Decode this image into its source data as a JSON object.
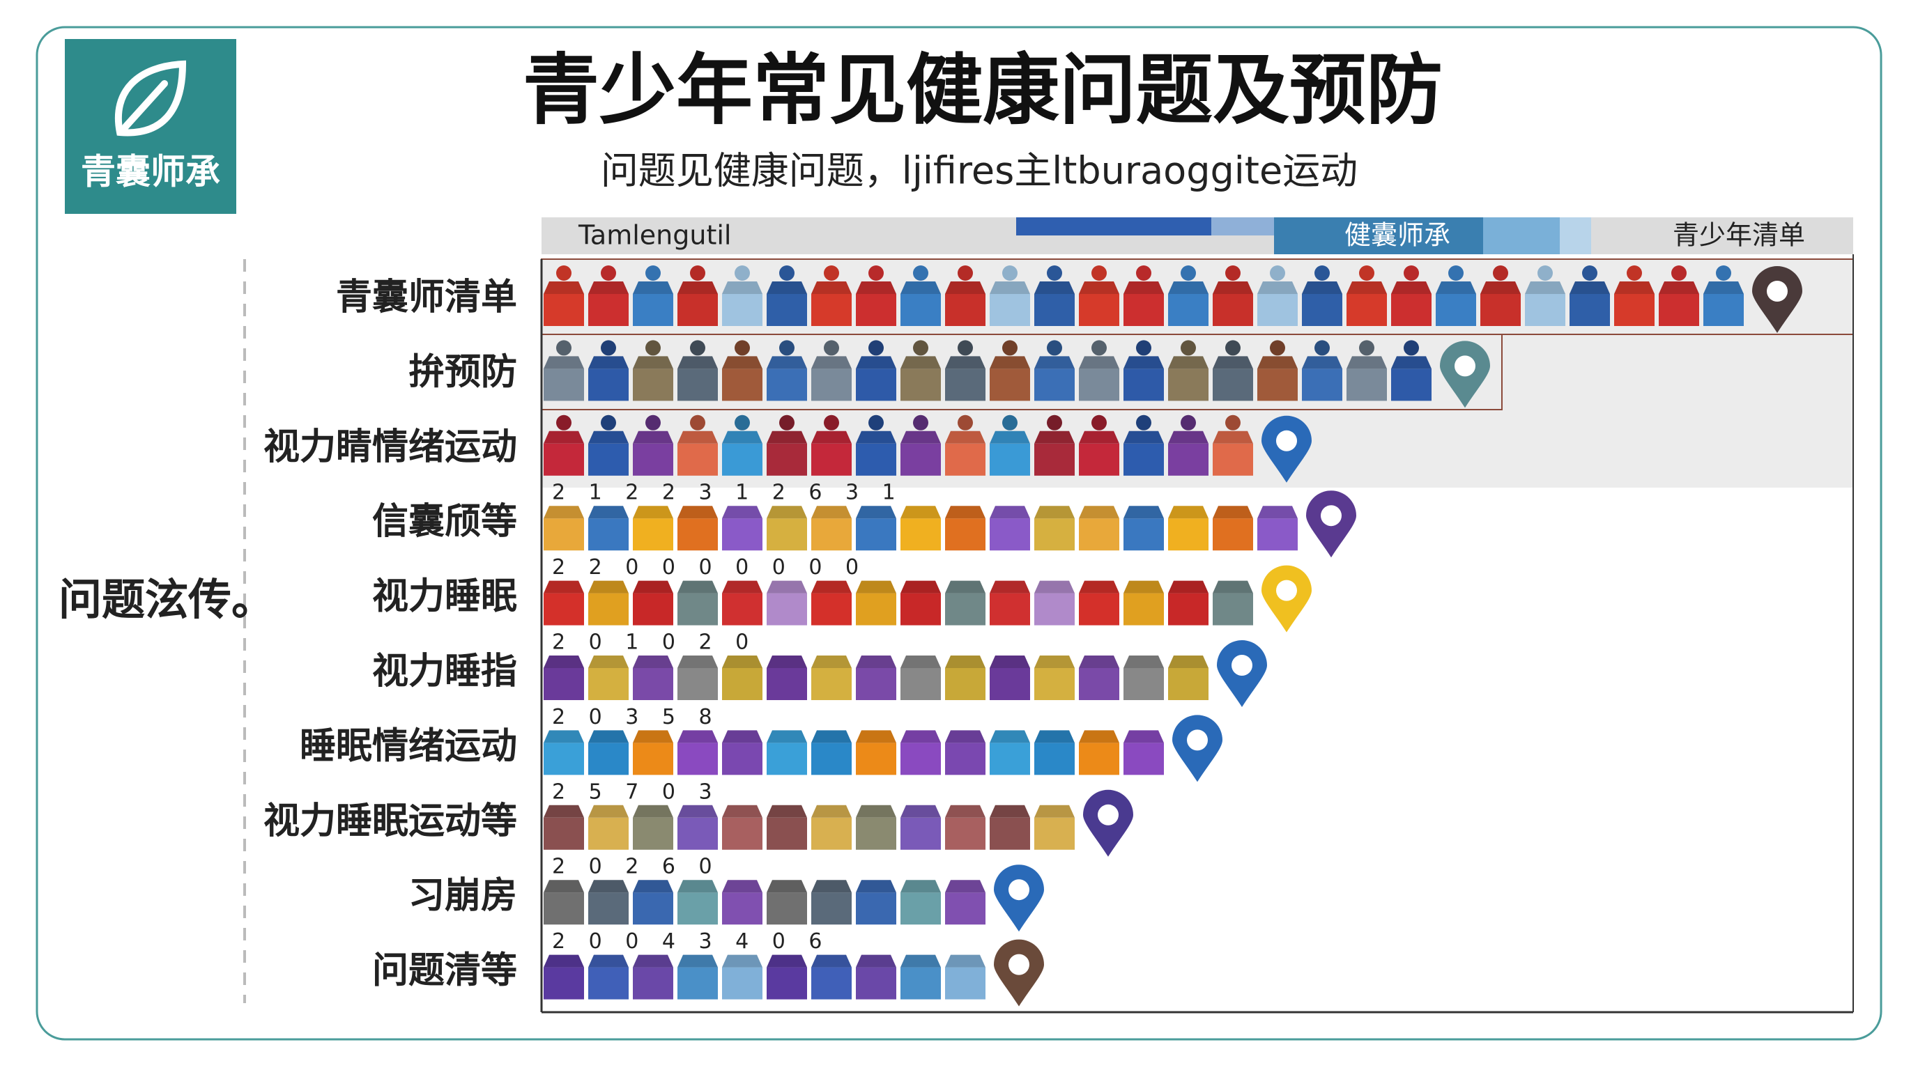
{
  "logo": {
    "text": "青囊师承"
  },
  "side_label": "问题泫传。",
  "legend": [
    "Tamlengutil",
    "健囊师承",
    "青少年清单"
  ],
  "chart_data": {
    "type": "pictograph",
    "title": "青少年常见健康问题及预防",
    "subtitle": "问题见健康问题，ljifires主ltburaoggite运动",
    "categories": [
      "青囊师清单",
      "拚预防",
      "视力睛情绪运动",
      "信囊颀等",
      "视力睡眠",
      "视力睡指",
      "睡眠情绪运动",
      "视力睡眠运动等",
      "习崩房",
      "问题清等"
    ],
    "values": [
      27,
      20,
      16,
      17,
      16,
      15,
      14,
      12,
      10,
      10
    ],
    "value_notes": [
      null,
      null,
      null,
      "2 1 2 2 3 1 2 6 3 1",
      "2 2 0 0 0 0 0 0 0",
      "2 0 1 0 2 0",
      "2 0 3 5 8",
      "2 5 7 0 3",
      "2 0 2 6 0",
      "2 0 0 4 3 4 0 6"
    ],
    "colors": [
      [
        "#d63a2a",
        "#cc2f2f",
        "#3a7fc4",
        "#c8302a",
        "#9fc3e0",
        "#2f5fa8"
      ],
      [
        "#7a8a9a",
        "#2e5aa8",
        "#8a7a5a",
        "#5a6a7a",
        "#a05a3a",
        "#3b6fb6"
      ],
      [
        "#c4283a",
        "#2d5cae",
        "#7a3fa0",
        "#e06a4a",
        "#3a9ad6",
        "#a82a3a"
      ],
      [
        "#e8a83a",
        "#3a78c0",
        "#f0b020",
        "#e07020",
        "#8a5ac8",
        "#d6b040"
      ],
      [
        "#d4302a",
        "#e0a020",
        "#c82828",
        "#708888",
        "#d03030",
        "#b08aca"
      ],
      [
        "#6a3a9a",
        "#d4b040",
        "#7a4aa8",
        "#888888",
        "#c8a838"
      ],
      [
        "#3aa0d8",
        "#2a88c8",
        "#ec8a18",
        "#8a4ac0",
        "#7a48b0"
      ],
      [
        "#8a5050",
        "#d8b050",
        "#8a8a70",
        "#7a5ab8",
        "#a86060"
      ],
      [
        "#707070",
        "#5a6a7a",
        "#3a68b0",
        "#6aa0a8",
        "#8050b0"
      ],
      [
        "#5a3aa0",
        "#4060b8",
        "#6a48a8",
        "#4a90c8",
        "#80b0d8"
      ]
    ]
  }
}
